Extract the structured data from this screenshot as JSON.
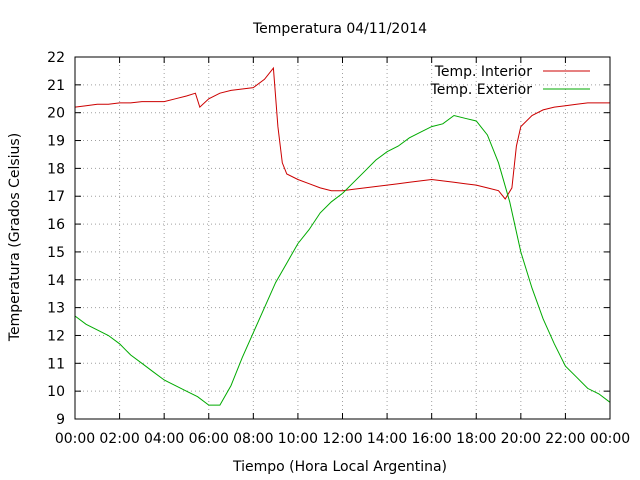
{
  "chart_data": {
    "type": "line",
    "title": "Temperatura 04/11/2014",
    "xlabel": "Tiempo (Hora Local Argentina)",
    "ylabel": "Temperatura (Grados Celsius)",
    "xlim": [
      "00:00",
      "24:00"
    ],
    "ylim": [
      9,
      22
    ],
    "x_ticks": [
      "00:00",
      "02:00",
      "04:00",
      "06:00",
      "08:00",
      "10:00",
      "12:00",
      "14:00",
      "16:00",
      "18:00",
      "20:00",
      "22:00",
      "00:00"
    ],
    "y_ticks": [
      9,
      10,
      11,
      12,
      13,
      14,
      15,
      16,
      17,
      18,
      19,
      20,
      21,
      22
    ],
    "grid": true,
    "legend_position": "top-right",
    "series": [
      {
        "name": "Temp. Interior",
        "color": "#cc0000",
        "x": [
          "00:00",
          "00:30",
          "01:00",
          "01:30",
          "02:00",
          "02:30",
          "03:00",
          "03:30",
          "04:00",
          "04:30",
          "05:00",
          "05:24",
          "05:36",
          "06:00",
          "06:30",
          "07:00",
          "07:30",
          "08:00",
          "08:30",
          "08:54",
          "09:06",
          "09:18",
          "09:30",
          "10:00",
          "10:30",
          "11:00",
          "11:30",
          "12:00",
          "12:30",
          "13:00",
          "13:30",
          "14:00",
          "14:30",
          "15:00",
          "15:30",
          "16:00",
          "16:30",
          "17:00",
          "17:30",
          "18:00",
          "18:30",
          "19:00",
          "19:18",
          "19:36",
          "19:48",
          "20:00",
          "20:30",
          "21:00",
          "21:30",
          "22:00",
          "22:30",
          "23:00",
          "23:30",
          "24:00"
        ],
        "values": [
          20.2,
          20.25,
          20.3,
          20.3,
          20.35,
          20.35,
          20.4,
          20.4,
          20.4,
          20.5,
          20.6,
          20.7,
          20.2,
          20.5,
          20.7,
          20.8,
          20.85,
          20.9,
          21.2,
          21.6,
          19.5,
          18.2,
          17.8,
          17.6,
          17.45,
          17.3,
          17.2,
          17.2,
          17.25,
          17.3,
          17.35,
          17.4,
          17.45,
          17.5,
          17.55,
          17.6,
          17.55,
          17.5,
          17.45,
          17.4,
          17.3,
          17.2,
          16.9,
          17.3,
          18.8,
          19.5,
          19.9,
          20.1,
          20.2,
          20.25,
          20.3,
          20.35,
          20.35,
          20.35
        ]
      },
      {
        "name": "Temp. Exterior",
        "color": "#00aa00",
        "x": [
          "00:00",
          "00:30",
          "01:00",
          "01:30",
          "02:00",
          "02:30",
          "03:00",
          "03:30",
          "04:00",
          "04:30",
          "05:00",
          "05:30",
          "06:00",
          "06:30",
          "07:00",
          "07:30",
          "08:00",
          "08:30",
          "09:00",
          "09:30",
          "10:00",
          "10:30",
          "11:00",
          "11:30",
          "12:00",
          "12:30",
          "13:00",
          "13:30",
          "14:00",
          "14:30",
          "15:00",
          "15:30",
          "16:00",
          "16:30",
          "17:00",
          "17:30",
          "18:00",
          "18:30",
          "19:00",
          "19:30",
          "20:00",
          "20:30",
          "21:00",
          "21:30",
          "22:00",
          "22:30",
          "23:00",
          "23:30",
          "24:00"
        ],
        "values": [
          12.7,
          12.4,
          12.2,
          12.0,
          11.7,
          11.3,
          11.0,
          10.7,
          10.4,
          10.2,
          10.0,
          9.8,
          9.5,
          9.5,
          10.2,
          11.2,
          12.1,
          13.0,
          13.9,
          14.6,
          15.3,
          15.8,
          16.4,
          16.8,
          17.1,
          17.5,
          17.9,
          18.3,
          18.6,
          18.8,
          19.1,
          19.3,
          19.5,
          19.6,
          19.9,
          19.8,
          19.7,
          19.2,
          18.2,
          16.8,
          15.0,
          13.7,
          12.6,
          11.7,
          10.9,
          10.5,
          10.1,
          9.9,
          9.6
        ]
      }
    ]
  }
}
